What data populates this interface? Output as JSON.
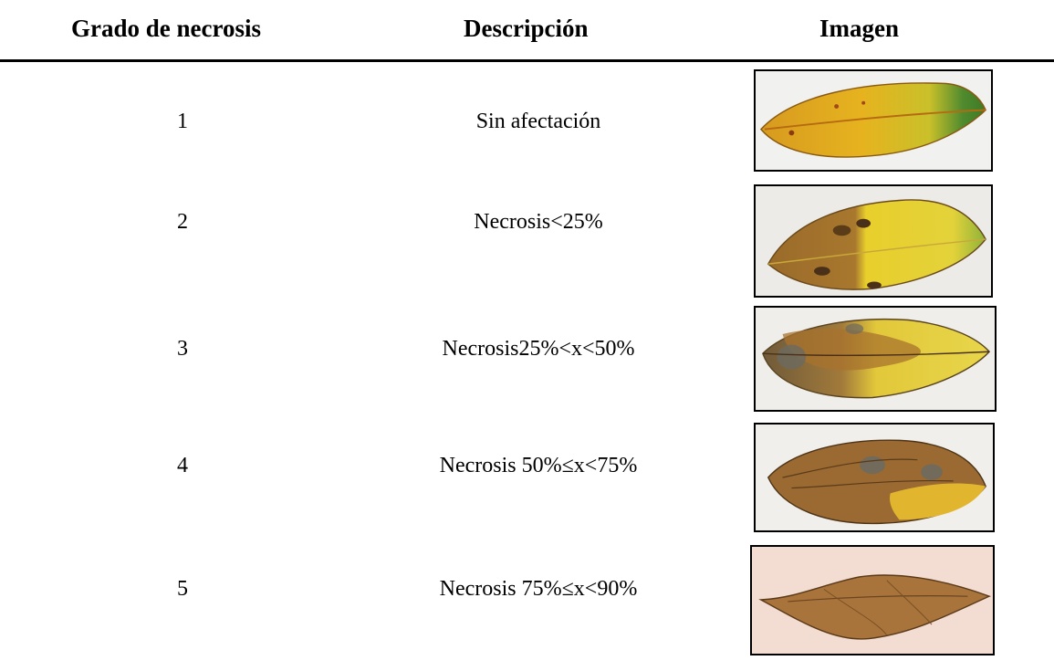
{
  "table": {
    "headers": {
      "grade": "Grado de necrosis",
      "description": "Descripción",
      "image": "Imagen"
    },
    "rows": [
      {
        "grade": "1",
        "description": "Sin afectación",
        "image_icon": "leaf-image-healthy"
      },
      {
        "grade": "2",
        "description": "Necrosis<25%",
        "image_icon": "leaf-image-necrosis-2"
      },
      {
        "grade": "3",
        "description": "Necrosis25%<x<50%",
        "image_icon": "leaf-image-necrosis-3"
      },
      {
        "grade": "4",
        "description": "Necrosis 50%≤x<75%",
        "image_icon": "leaf-image-necrosis-4"
      },
      {
        "grade": "5",
        "description": "Necrosis 75%≤x<90%",
        "image_icon": "leaf-image-necrosis-5"
      }
    ]
  }
}
